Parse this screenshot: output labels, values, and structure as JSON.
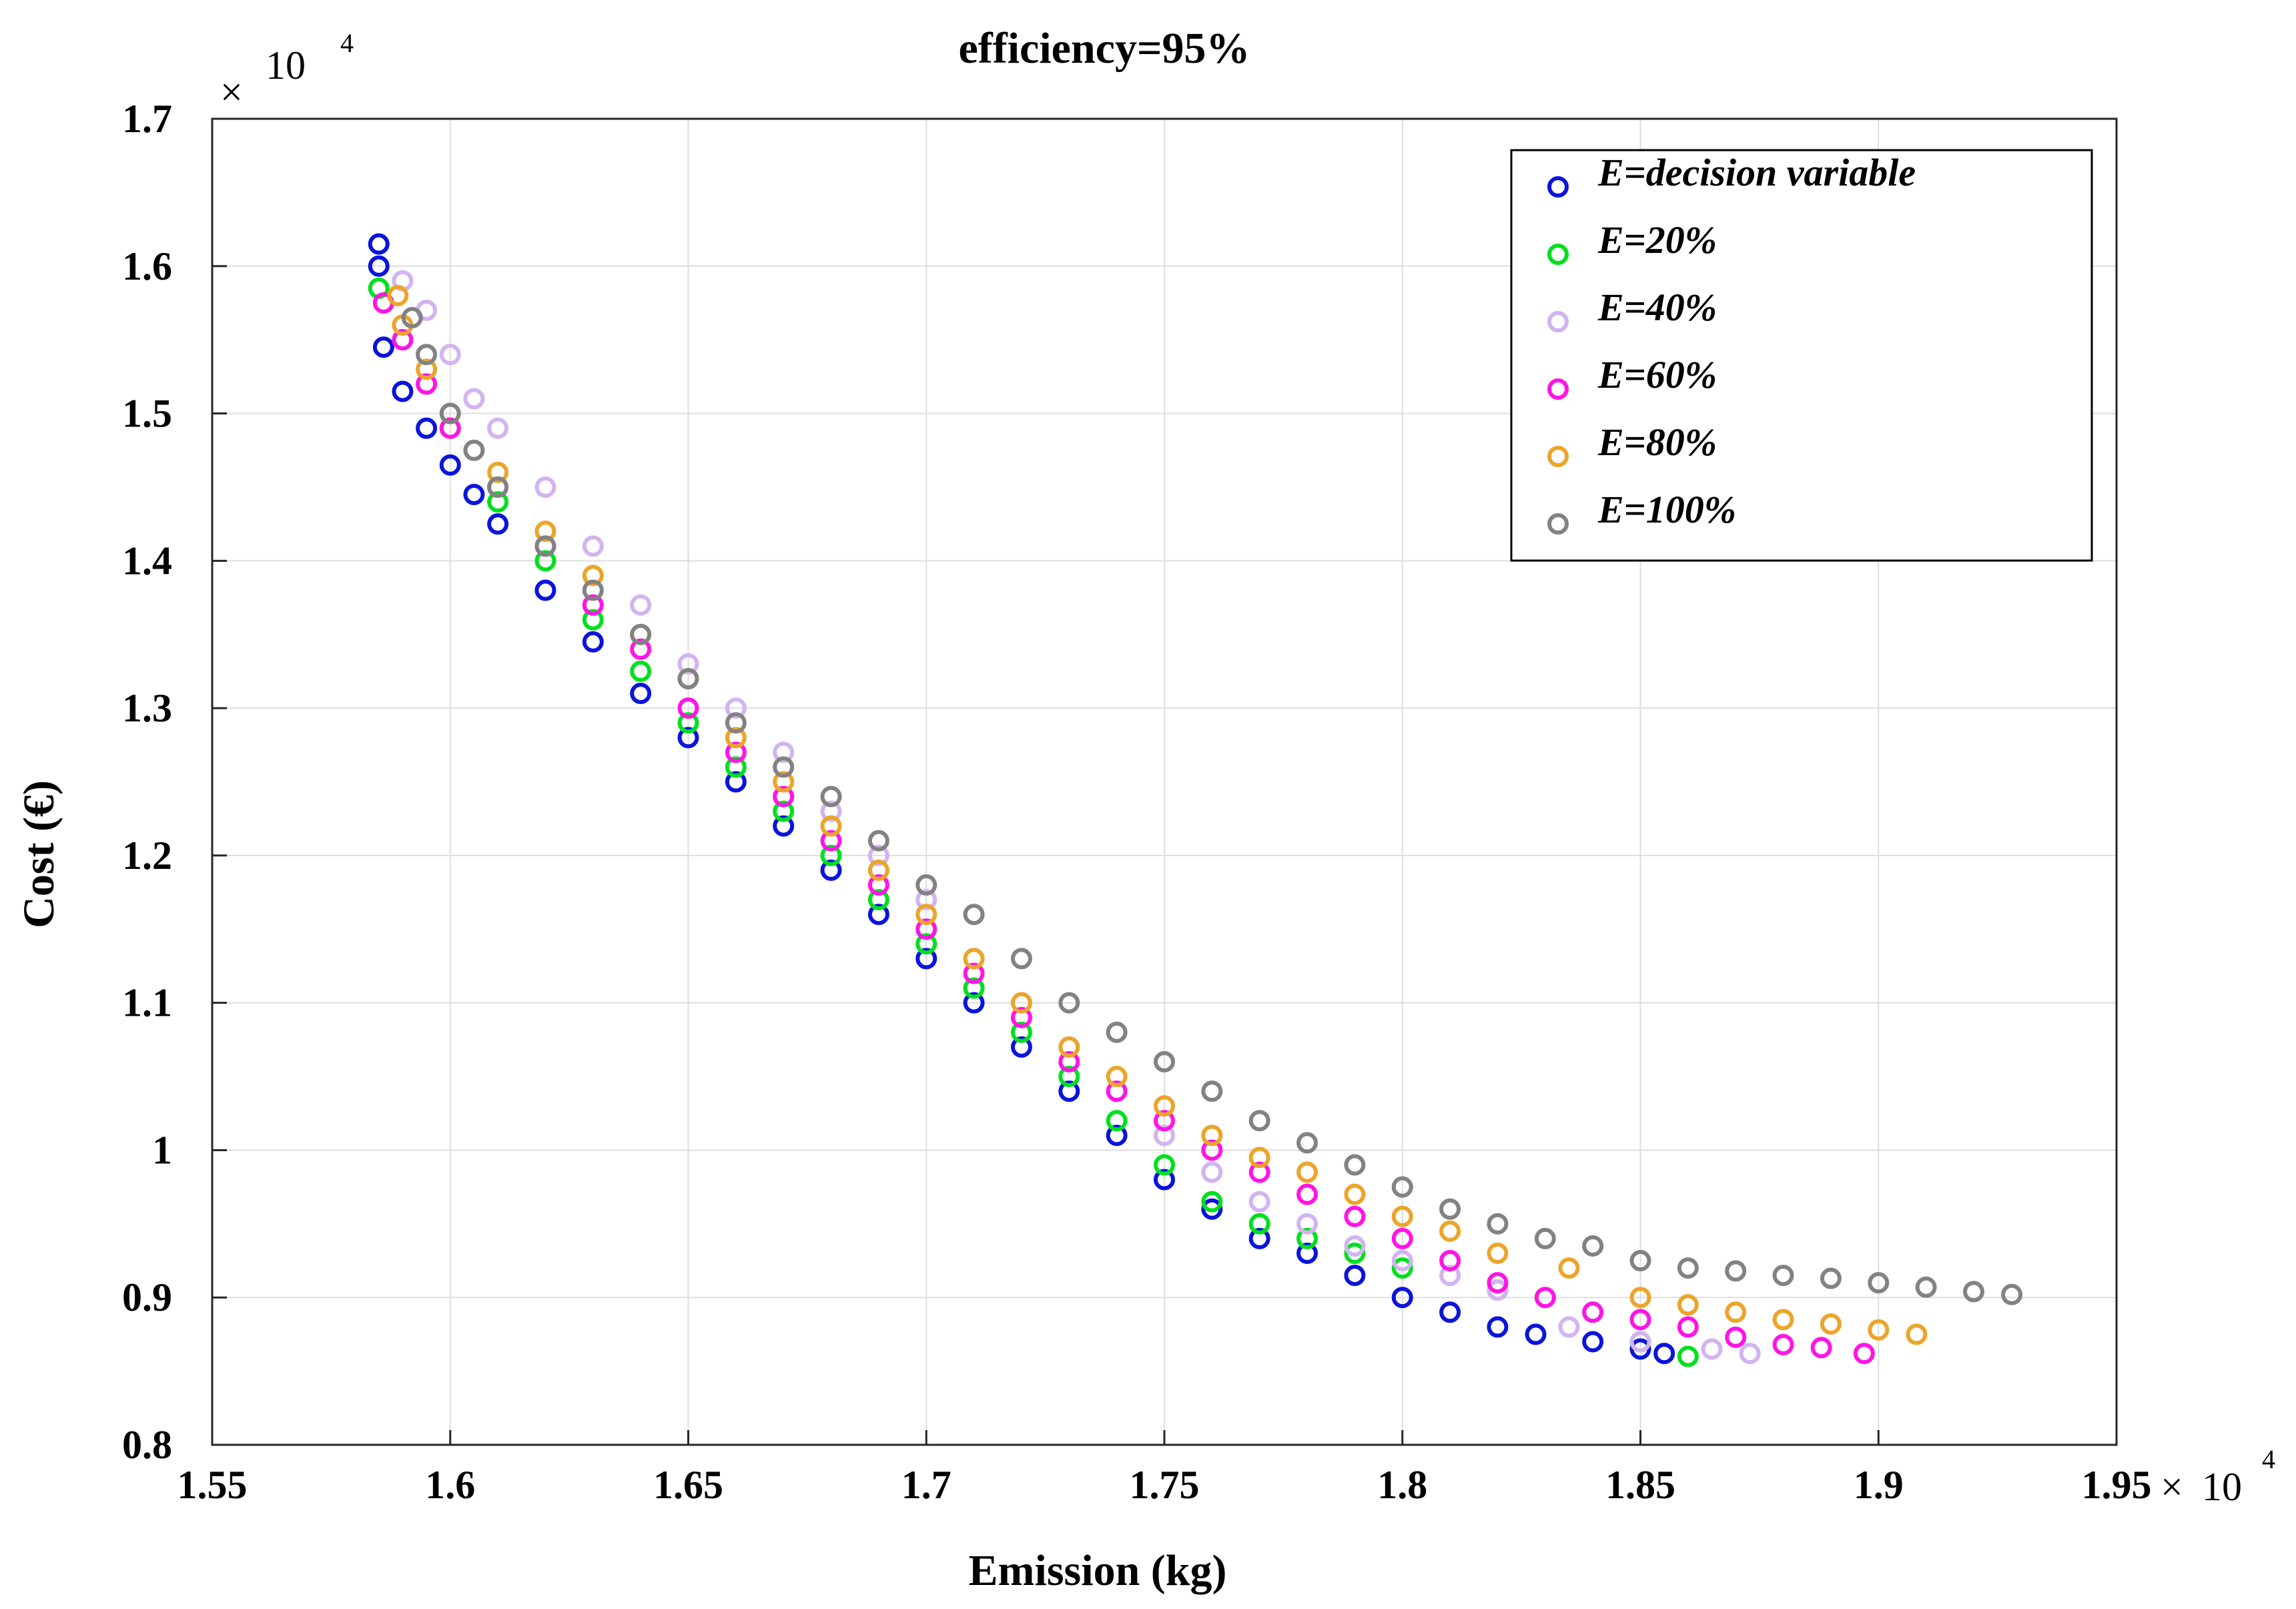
{
  "chart_data": {
    "type": "scatter",
    "title": "efficiency=95%",
    "xlabel": "Emission (kg)",
    "ylabel": "Cost (€)",
    "x_multiplier": {
      "symbol": "×",
      "base": "10",
      "exponent": "4"
    },
    "y_multiplier": {
      "symbol": "×",
      "base": "10",
      "exponent": "4"
    },
    "xlim": [
      1.55,
      1.95
    ],
    "ylim": [
      0.8,
      1.7
    ],
    "xticks": [
      1.55,
      1.6,
      1.65,
      1.7,
      1.75,
      1.8,
      1.85,
      1.9,
      1.95
    ],
    "xtick_labels": [
      "1.55",
      "1.6",
      "1.65",
      "1.7",
      "1.75",
      "1.8",
      "1.85",
      "1.9",
      "1.95"
    ],
    "yticks": [
      0.8,
      0.9,
      1.0,
      1.1,
      1.2,
      1.3,
      1.4,
      1.5,
      1.6,
      1.7
    ],
    "ytick_labels": [
      "0.8",
      "0.9",
      "1",
      "1.1",
      "1.2",
      "1.3",
      "1.4",
      "1.5",
      "1.6",
      "1.7"
    ],
    "grid": true,
    "legend_position": "top-right",
    "marker": "open-circle",
    "series": [
      {
        "name": "E=decision variable",
        "color": "#0a14dc",
        "x": [
          1.585,
          1.585,
          1.586,
          1.59,
          1.595,
          1.6,
          1.605,
          1.61,
          1.62,
          1.63,
          1.64,
          1.65,
          1.66,
          1.67,
          1.68,
          1.69,
          1.7,
          1.71,
          1.72,
          1.73,
          1.74,
          1.75,
          1.76,
          1.77,
          1.78,
          1.79,
          1.8,
          1.81,
          1.82,
          1.828,
          1.84,
          1.85,
          1.855
        ],
        "y": [
          1.615,
          1.6,
          1.545,
          1.515,
          1.49,
          1.465,
          1.445,
          1.425,
          1.38,
          1.345,
          1.31,
          1.28,
          1.25,
          1.22,
          1.19,
          1.16,
          1.13,
          1.1,
          1.07,
          1.04,
          1.01,
          0.98,
          0.96,
          0.94,
          0.93,
          0.915,
          0.9,
          0.89,
          0.88,
          0.875,
          0.87,
          0.865,
          0.862
        ]
      },
      {
        "name": "E=20%",
        "color": "#00e01e",
        "x": [
          1.585,
          1.59,
          1.6,
          1.61,
          1.62,
          1.63,
          1.64,
          1.65,
          1.66,
          1.67,
          1.68,
          1.69,
          1.7,
          1.71,
          1.72,
          1.73,
          1.74,
          1.75,
          1.76,
          1.77,
          1.78,
          1.79,
          1.8,
          1.82,
          1.84,
          1.85,
          1.86
        ],
        "y": [
          1.585,
          1.55,
          1.49,
          1.44,
          1.4,
          1.36,
          1.325,
          1.29,
          1.26,
          1.23,
          1.2,
          1.17,
          1.14,
          1.11,
          1.08,
          1.05,
          1.02,
          0.99,
          0.965,
          0.95,
          0.94,
          0.93,
          0.92,
          0.905,
          0.89,
          0.87,
          0.86
        ]
      },
      {
        "name": "E=40%",
        "color": "#d2b4f0",
        "x": [
          1.59,
          1.595,
          1.6,
          1.605,
          1.61,
          1.62,
          1.63,
          1.64,
          1.65,
          1.66,
          1.67,
          1.68,
          1.69,
          1.7,
          1.71,
          1.72,
          1.73,
          1.74,
          1.75,
          1.76,
          1.77,
          1.78,
          1.79,
          1.8,
          1.81,
          1.82,
          1.835,
          1.85,
          1.865,
          1.873
        ],
        "y": [
          1.59,
          1.57,
          1.54,
          1.51,
          1.49,
          1.45,
          1.41,
          1.37,
          1.33,
          1.3,
          1.27,
          1.23,
          1.2,
          1.17,
          1.13,
          1.1,
          1.07,
          1.04,
          1.01,
          0.985,
          0.965,
          0.95,
          0.935,
          0.925,
          0.915,
          0.905,
          0.88,
          0.87,
          0.865,
          0.862
        ]
      },
      {
        "name": "E=60%",
        "color": "#ff14e6",
        "x": [
          1.586,
          1.59,
          1.595,
          1.6,
          1.61,
          1.62,
          1.63,
          1.64,
          1.65,
          1.66,
          1.67,
          1.68,
          1.69,
          1.7,
          1.71,
          1.72,
          1.73,
          1.74,
          1.75,
          1.76,
          1.77,
          1.78,
          1.79,
          1.8,
          1.81,
          1.82,
          1.83,
          1.84,
          1.85,
          1.86,
          1.87,
          1.88,
          1.888,
          1.897
        ],
        "y": [
          1.575,
          1.55,
          1.52,
          1.49,
          1.45,
          1.41,
          1.37,
          1.34,
          1.3,
          1.27,
          1.24,
          1.21,
          1.18,
          1.15,
          1.12,
          1.09,
          1.06,
          1.04,
          1.02,
          1.0,
          0.985,
          0.97,
          0.955,
          0.94,
          0.925,
          0.91,
          0.9,
          0.89,
          0.885,
          0.88,
          0.873,
          0.868,
          0.866,
          0.862
        ]
      },
      {
        "name": "E=80%",
        "color": "#eba52a",
        "x": [
          1.589,
          1.59,
          1.595,
          1.6,
          1.61,
          1.62,
          1.63,
          1.64,
          1.65,
          1.66,
          1.67,
          1.68,
          1.69,
          1.7,
          1.71,
          1.72,
          1.73,
          1.74,
          1.75,
          1.76,
          1.77,
          1.78,
          1.79,
          1.8,
          1.81,
          1.82,
          1.835,
          1.85,
          1.86,
          1.87,
          1.88,
          1.89,
          1.9,
          1.908
        ],
        "y": [
          1.58,
          1.56,
          1.53,
          1.5,
          1.46,
          1.42,
          1.39,
          1.35,
          1.32,
          1.28,
          1.25,
          1.22,
          1.19,
          1.16,
          1.13,
          1.1,
          1.07,
          1.05,
          1.03,
          1.01,
          0.995,
          0.985,
          0.97,
          0.955,
          0.945,
          0.93,
          0.92,
          0.9,
          0.895,
          0.89,
          0.885,
          0.882,
          0.878,
          0.875
        ]
      },
      {
        "name": "E=100%",
        "color": "#828282",
        "x": [
          1.592,
          1.595,
          1.6,
          1.605,
          1.61,
          1.62,
          1.63,
          1.64,
          1.65,
          1.66,
          1.67,
          1.68,
          1.69,
          1.7,
          1.71,
          1.72,
          1.73,
          1.74,
          1.75,
          1.76,
          1.77,
          1.78,
          1.79,
          1.8,
          1.81,
          1.82,
          1.83,
          1.84,
          1.85,
          1.86,
          1.87,
          1.88,
          1.89,
          1.9,
          1.91,
          1.92,
          1.928
        ],
        "y": [
          1.565,
          1.54,
          1.5,
          1.475,
          1.45,
          1.41,
          1.38,
          1.35,
          1.32,
          1.29,
          1.26,
          1.24,
          1.21,
          1.18,
          1.16,
          1.13,
          1.1,
          1.08,
          1.06,
          1.04,
          1.02,
          1.005,
          0.99,
          0.975,
          0.96,
          0.95,
          0.94,
          0.935,
          0.925,
          0.92,
          0.918,
          0.915,
          0.913,
          0.91,
          0.907,
          0.904,
          0.902
        ]
      }
    ]
  }
}
